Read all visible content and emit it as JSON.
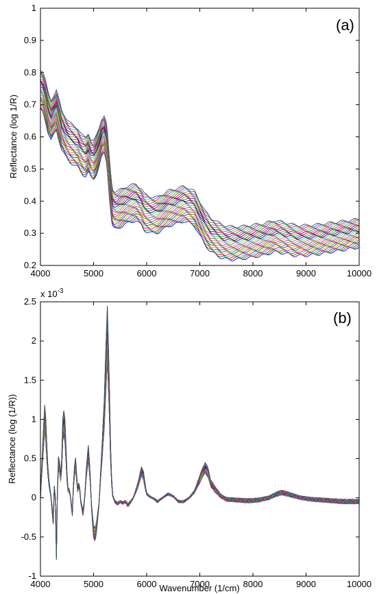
{
  "chart_data": [
    {
      "type": "line",
      "panel_label": "(a)",
      "xlabel": "",
      "ylabel": "Reflectance (log 1/R)",
      "xlim": [
        4000,
        10000
      ],
      "ylim": [
        0.2,
        1.0
      ],
      "xticks": [
        "4000",
        "5000",
        "6000",
        "7000",
        "8000",
        "9000",
        "10000"
      ],
      "yticks": [
        "0.2",
        "0.3",
        "0.4",
        "0.5",
        "0.6",
        "0.7",
        "0.8",
        "0.9",
        "1"
      ],
      "grid": false,
      "n_spectra": 30,
      "mean_spectrum": {
        "x": [
          4000,
          4050,
          4100,
          4150,
          4200,
          4250,
          4300,
          4350,
          4400,
          4450,
          4500,
          4550,
          4600,
          4650,
          4700,
          4750,
          4800,
          4850,
          4900,
          4950,
          5000,
          5050,
          5100,
          5150,
          5200,
          5250,
          5300,
          5350,
          5400,
          5450,
          5500,
          5600,
          5700,
          5800,
          5900,
          5950,
          6000,
          6100,
          6200,
          6300,
          6400,
          6500,
          6600,
          6700,
          6800,
          6900,
          7000,
          7100,
          7200,
          7300,
          7400,
          7500,
          7600,
          7800,
          8000,
          8200,
          8400,
          8600,
          8800,
          9000,
          9200,
          9400,
          9600,
          9800,
          10000
        ],
        "y": [
          0.74,
          0.73,
          0.7,
          0.665,
          0.645,
          0.66,
          0.675,
          0.645,
          0.615,
          0.6,
          0.585,
          0.575,
          0.57,
          0.565,
          0.56,
          0.545,
          0.535,
          0.53,
          0.545,
          0.525,
          0.52,
          0.535,
          0.56,
          0.59,
          0.6,
          0.57,
          0.46,
          0.375,
          0.365,
          0.365,
          0.37,
          0.38,
          0.385,
          0.39,
          0.375,
          0.36,
          0.355,
          0.35,
          0.35,
          0.36,
          0.37,
          0.375,
          0.38,
          0.385,
          0.38,
          0.37,
          0.34,
          0.31,
          0.29,
          0.28,
          0.27,
          0.265,
          0.263,
          0.265,
          0.27,
          0.275,
          0.285,
          0.28,
          0.272,
          0.272,
          0.275,
          0.28,
          0.285,
          0.29,
          0.295
        ]
      },
      "spread": {
        "min_offset": -0.055,
        "max_offset": 0.07
      }
    },
    {
      "type": "line",
      "panel_label": "(b)",
      "scale_note": "x 10",
      "scale_exponent": "-3",
      "xlabel": "Wavenumber (1/cm)",
      "ylabel": "Reflectance (log (1/R))",
      "xlim": [
        4000,
        10000
      ],
      "ylim": [
        -1.0,
        2.5
      ],
      "xticks": [
        "4000",
        "5000",
        "6000",
        "7000",
        "8000",
        "9000",
        "10000"
      ],
      "yticks": [
        "-1",
        "-0.5",
        "0",
        "0.5",
        "1",
        "1.5",
        "2",
        "2.5"
      ],
      "grid": false,
      "n_spectra": 30,
      "mean_spectrum": {
        "x": [
          4000,
          4020,
          4050,
          4080,
          4100,
          4130,
          4160,
          4200,
          4240,
          4270,
          4300,
          4330,
          4360,
          4390,
          4420,
          4450,
          4480,
          4510,
          4550,
          4600,
          4630,
          4660,
          4700,
          4730,
          4760,
          4800,
          4830,
          4860,
          4900,
          4930,
          4960,
          5000,
          5030,
          5060,
          5100,
          5130,
          5160,
          5200,
          5230,
          5260,
          5290,
          5320,
          5350,
          5400,
          5450,
          5500,
          5550,
          5600,
          5650,
          5700,
          5750,
          5800,
          5850,
          5900,
          5940,
          5970,
          6000,
          6050,
          6100,
          6150,
          6200,
          6300,
          6400,
          6500,
          6600,
          6700,
          6800,
          6900,
          7000,
          7050,
          7100,
          7150,
          7200,
          7300,
          7400,
          7500,
          7700,
          7900,
          8100,
          8300,
          8450,
          8550,
          8600,
          8700,
          8900,
          9100,
          9300,
          9500,
          9700,
          9900,
          10000
        ],
        "y": [
          0.0,
          0.3,
          0.7,
          1.05,
          0.9,
          0.45,
          0.2,
          0.0,
          -0.3,
          0.35,
          -0.7,
          0.5,
          0.4,
          0.2,
          0.9,
          1.05,
          0.6,
          0.1,
          0.1,
          -0.2,
          0.3,
          0.45,
          0.1,
          0.2,
          -0.05,
          -0.2,
          -0.05,
          0.3,
          0.6,
          0.35,
          -0.1,
          -0.45,
          -0.5,
          -0.35,
          -0.1,
          0.25,
          0.6,
          1.1,
          1.7,
          2.18,
          1.5,
          0.6,
          0.05,
          -0.05,
          -0.08,
          -0.05,
          -0.07,
          -0.05,
          -0.1,
          -0.05,
          0.0,
          0.1,
          0.2,
          0.35,
          0.3,
          0.15,
          0.05,
          0.02,
          0.0,
          -0.02,
          -0.05,
          0.0,
          0.05,
          0.02,
          -0.05,
          -0.05,
          0.0,
          0.08,
          0.25,
          0.33,
          0.4,
          0.35,
          0.2,
          0.1,
          0.02,
          -0.02,
          -0.03,
          -0.04,
          -0.03,
          0.0,
          0.05,
          0.07,
          0.06,
          0.04,
          0.0,
          -0.02,
          -0.03,
          -0.04,
          -0.05,
          -0.05,
          -0.05
        ]
      },
      "spread": {
        "min_scale": 0.8,
        "max_scale": 1.12
      }
    }
  ],
  "colors": {
    "series_palette": [
      "#0000ff",
      "#008000",
      "#ff0000",
      "#00bfbf",
      "#bf00bf",
      "#bfbf00",
      "#404040",
      "#1f77b4",
      "#ff7f0e",
      "#2ca02c",
      "#d62728",
      "#9467bd",
      "#8c564b",
      "#e377c2",
      "#7f7f7f",
      "#bcbd22",
      "#17becf",
      "#000080",
      "#800000",
      "#008080",
      "#808000",
      "#800080",
      "#4b0082",
      "#ff1493",
      "#228b22",
      "#b8860b",
      "#00ced1",
      "#dc143c",
      "#6a5acd",
      "#2f4f4f"
    ]
  }
}
